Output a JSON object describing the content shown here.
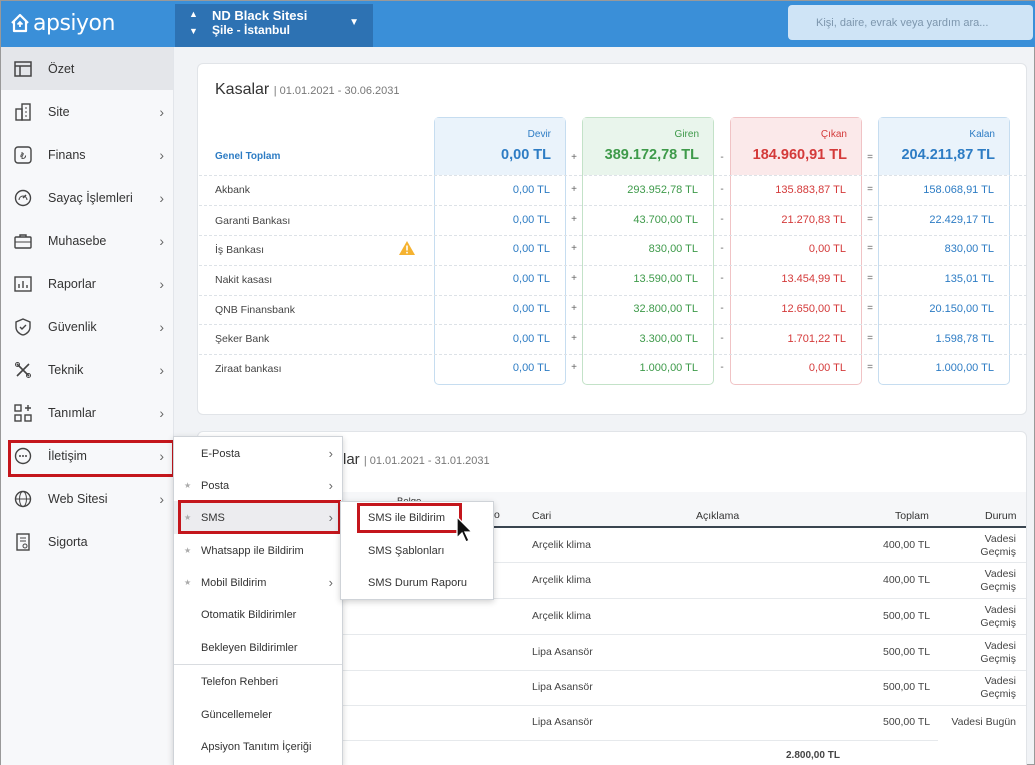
{
  "header": {
    "logo": "apsiyon",
    "site_name": "ND Black Sitesi",
    "site_location": "Şile - İstanbul",
    "search_placeholder": "Kişi, daire, evrak veya yardım ara..."
  },
  "sidebar": {
    "items": [
      {
        "label": "Özet",
        "icon": "layout-icon"
      },
      {
        "label": "Site",
        "icon": "building-icon"
      },
      {
        "label": "Finans",
        "icon": "lira-icon"
      },
      {
        "label": "Sayaç İşlemleri",
        "icon": "gauge-icon"
      },
      {
        "label": "Muhasebe",
        "icon": "briefcase-icon"
      },
      {
        "label": "Raporlar",
        "icon": "chart-icon"
      },
      {
        "label": "Güvenlik",
        "icon": "shield-icon"
      },
      {
        "label": "Teknik",
        "icon": "tools-icon"
      },
      {
        "label": "Tanımlar",
        "icon": "grid-plus-icon"
      },
      {
        "label": "İletişim",
        "icon": "chat-icon"
      },
      {
        "label": "Web Sitesi",
        "icon": "globe-icon"
      },
      {
        "label": "Sigorta",
        "icon": "document-icon"
      }
    ]
  },
  "kasalar": {
    "title": "Kasalar",
    "date_range": "01.01.2021 - 30.06.2031",
    "total_label": "Genel Toplam",
    "columns": {
      "devir": {
        "name": "Devir",
        "total": "0,00 TL"
      },
      "giren": {
        "name": "Giren",
        "total": "389.172,78 TL"
      },
      "cikan": {
        "name": "Çıkan",
        "total": "184.960,91 TL"
      },
      "kalan": {
        "name": "Kalan",
        "total": "204.211,87 TL"
      }
    },
    "operators": {
      "plus": "+",
      "minus": "-",
      "equals": "="
    },
    "rows": [
      {
        "bank": "Akbank",
        "devir": "0,00 TL",
        "giren": "293.952,78 TL",
        "cikan": "135.883,87 TL",
        "kalan": "158.068,91 TL"
      },
      {
        "bank": "Garanti Bankası",
        "devir": "0,00 TL",
        "giren": "43.700,00 TL",
        "cikan": "21.270,83 TL",
        "kalan": "22.429,17 TL"
      },
      {
        "bank": "İş Bankası",
        "devir": "0,00 TL",
        "giren": "830,00 TL",
        "cikan": "0,00 TL",
        "kalan": "830,00 TL"
      },
      {
        "bank": "Nakit kasası",
        "devir": "0,00 TL",
        "giren": "13.590,00 TL",
        "cikan": "13.454,99 TL",
        "kalan": "135,01 TL"
      },
      {
        "bank": "QNB Finansbank",
        "devir": "0,00 TL",
        "giren": "32.800,00 TL",
        "cikan": "12.650,00 TL",
        "kalan": "20.150,00 TL"
      },
      {
        "bank": "Şeker Bank",
        "devir": "0,00 TL",
        "giren": "3.300,00 TL",
        "cikan": "1.701,22 TL",
        "kalan": "1.598,78 TL"
      },
      {
        "bank": "Ziraat bankası",
        "devir": "0,00 TL",
        "giren": "1.000,00 TL",
        "cikan": "0,00 TL",
        "kalan": "1.000,00 TL"
      }
    ]
  },
  "bills": {
    "title_fragment": "lar",
    "date_range": "01.01.2021 - 31.01.2031",
    "headers": {
      "belge": "Belge",
      "no": "o",
      "cari": "Cari",
      "aciklama": "Açıklama",
      "toplam": "Toplam",
      "durum": "Durum"
    },
    "rows": [
      {
        "cari": "Arçelik klima",
        "toplam": "400,00 TL",
        "durum1": "Vadesi",
        "durum2": "Geçmiş"
      },
      {
        "cari": "Arçelik klima",
        "toplam": "400,00 TL",
        "durum1": "Vadesi",
        "durum2": "Geçmiş"
      },
      {
        "cari": "Arçelik klima",
        "toplam": "500,00 TL",
        "durum1": "Vadesi",
        "durum2": "Geçmiş"
      },
      {
        "cari": "Lipa Asansör",
        "toplam": "500,00 TL",
        "durum1": "Vadesi",
        "durum2": "Geçmiş"
      },
      {
        "cari": "Lipa Asansör",
        "toplam": "500,00 TL",
        "durum1": "Vadesi",
        "durum2": "Geçmiş"
      },
      {
        "cari": "Lipa Asansör",
        "toplam": "500,00 TL",
        "durum1": "Vadesi Bugün",
        "durum2": ""
      }
    ],
    "grand_total": "2.800,00 TL"
  },
  "iletisim_menu": {
    "items": [
      {
        "label": "E-Posta",
        "star": false,
        "arrow": true
      },
      {
        "label": "Posta",
        "star": true,
        "arrow": true
      },
      {
        "label": "SMS",
        "star": true,
        "arrow": true
      },
      {
        "label": "Whatsapp ile Bildirim",
        "star": true,
        "arrow": false
      },
      {
        "label": "Mobil Bildirim",
        "star": true,
        "arrow": true
      },
      {
        "label": "Otomatik Bildirimler",
        "star": false,
        "arrow": false
      },
      {
        "label": "Bekleyen Bildirimler",
        "star": false,
        "arrow": false
      },
      {
        "label": "Telefon Rehberi",
        "star": false,
        "arrow": false
      },
      {
        "label": "Güncellemeler",
        "star": false,
        "arrow": false
      },
      {
        "label": "Apsiyon Tanıtım İçeriği",
        "star": false,
        "arrow": false
      }
    ]
  },
  "sms_submenu": {
    "items": [
      {
        "label": "SMS ile Bildirim"
      },
      {
        "label": "SMS Şablonları"
      },
      {
        "label": "SMS Durum Raporu"
      }
    ]
  },
  "colors": {
    "brand_blue": "#3a8fd8",
    "site_select_bg": "#2d72b3",
    "highlight_red": "#c4161c",
    "devir_bg": "#eaf3fb",
    "giren_bg": "#e9f5ec",
    "cikan_bg": "#fbe9ea",
    "kalan_bg": "#eaf3fb"
  }
}
